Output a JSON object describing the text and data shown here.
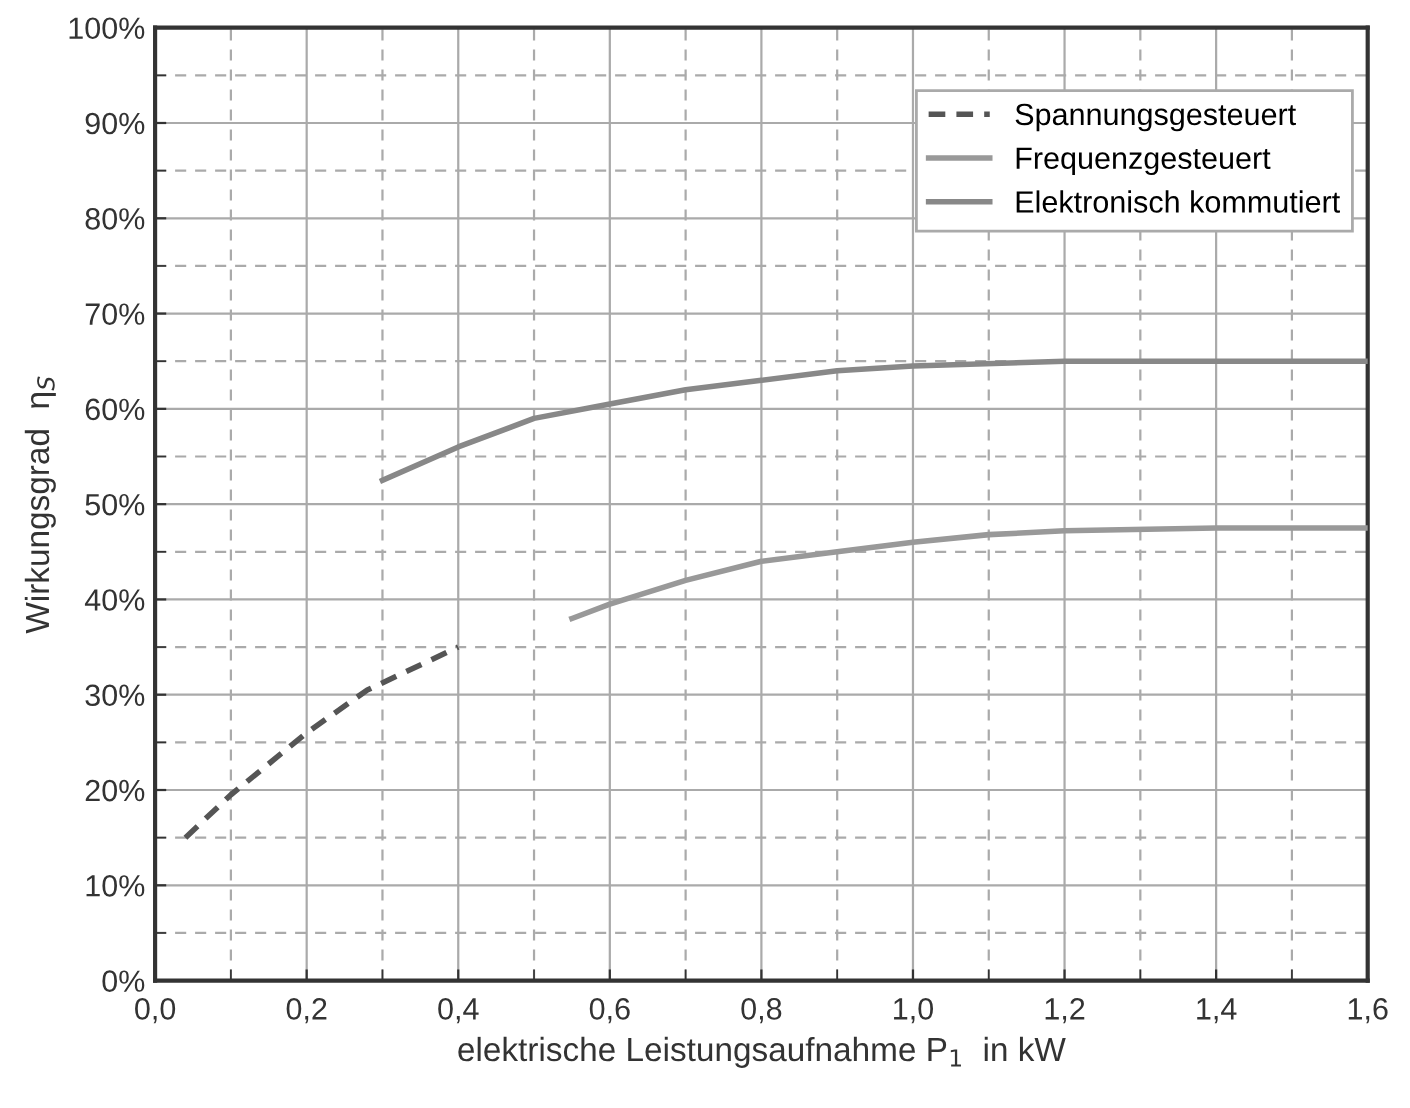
{
  "chart_data": {
    "type": "line",
    "xlabel": "elektrische Leistungsaufnahme P$_{1}$  in kW",
    "ylabel": "Wirkungsgrad  η$_{S}$",
    "xlim": [
      0,
      1.6
    ],
    "ylim": [
      0,
      100
    ],
    "xticks": [
      {
        "value": 0,
        "label": "0,0"
      },
      {
        "value": 0.2,
        "label": "0,2"
      },
      {
        "value": 0.4,
        "label": "0,4"
      },
      {
        "value": 0.6,
        "label": "0,6"
      },
      {
        "value": 0.8,
        "label": "0,8"
      },
      {
        "value": 1.0,
        "label": "1,0"
      },
      {
        "value": 1.2,
        "label": "1,2"
      },
      {
        "value": 1.4,
        "label": "1,4"
      },
      {
        "value": 1.6,
        "label": "1,6"
      }
    ],
    "yticks": [
      {
        "value": 0,
        "label": "0%"
      },
      {
        "value": 10,
        "label": "10%"
      },
      {
        "value": 20,
        "label": "20%"
      },
      {
        "value": 30,
        "label": "30%"
      },
      {
        "value": 40,
        "label": "40%"
      },
      {
        "value": 50,
        "label": "50%"
      },
      {
        "value": 60,
        "label": "60%"
      },
      {
        "value": 70,
        "label": "70%"
      },
      {
        "value": 80,
        "label": "80%"
      },
      {
        "value": 90,
        "label": "90%"
      },
      {
        "value": 100,
        "label": "100%"
      }
    ],
    "grid": true,
    "legend": "top right",
    "marker": "none",
    "series": [
      {
        "name": "Spannungsgesteuert",
        "color": "#555555",
        "line_style": "dashed",
        "x": [
          0.04,
          0.1,
          0.2,
          0.28,
          0.4
        ],
        "values": [
          15,
          19.5,
          26,
          30.5,
          35
        ]
      },
      {
        "name": "Frequenzgesteuert",
        "color": "#999999",
        "line_style": "solid",
        "x": [
          0.55,
          0.6,
          0.7,
          0.8,
          0.9,
          1.0,
          1.1,
          1.2,
          1.4,
          1.6
        ],
        "values": [
          38,
          39.5,
          42,
          44,
          45,
          46,
          46.8,
          47.2,
          47.5,
          47.5
        ]
      },
      {
        "name": "Elektronisch kommutiert",
        "color": "#888888",
        "line_style": "solid",
        "x": [
          0.3,
          0.4,
          0.5,
          0.6,
          0.7,
          0.8,
          0.9,
          1.0,
          1.2,
          1.4,
          1.6
        ],
        "values": [
          52.5,
          56,
          59,
          60.5,
          62,
          63,
          64,
          64.5,
          65,
          65,
          65
        ]
      }
    ]
  }
}
